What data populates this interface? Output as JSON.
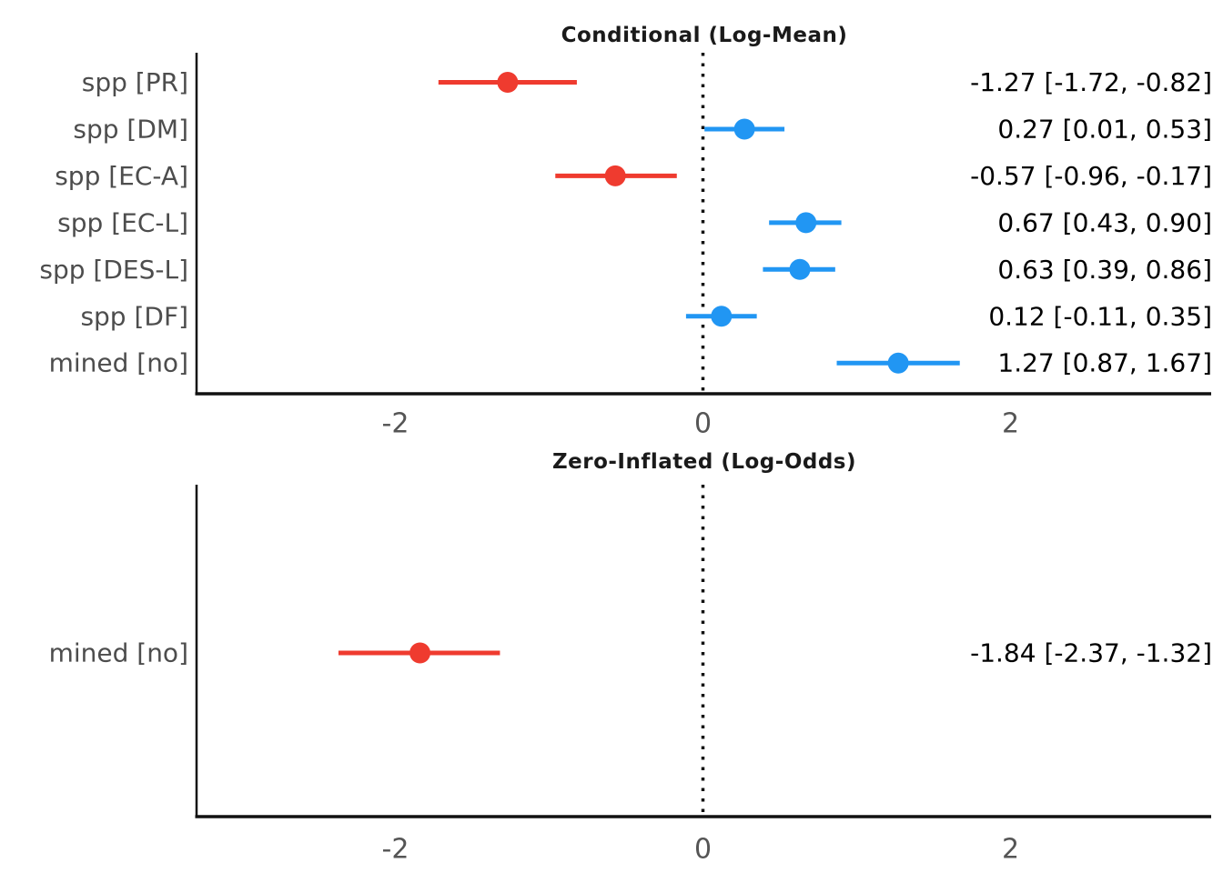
{
  "page": {
    "background": "#ffffff"
  },
  "colors": {
    "positive": "#2196F3",
    "negative": "#EF3B2F",
    "row_label": "#4D4D4D",
    "tick_label": "#555555",
    "value_label": "#000000",
    "axis": "#111111",
    "zero_line": "#111111",
    "title": "#1A1A1A"
  },
  "chart_data": [
    {
      "type": "forest",
      "title": "Conditional (Log-Mean)",
      "x_ticks": [
        "-2",
        "0",
        "2"
      ],
      "x_tick_values": [
        -2,
        0,
        2
      ],
      "xlim": [
        -3.3,
        3.35
      ],
      "zero_line": 0,
      "grid": false,
      "legend": "none",
      "rows": [
        {
          "label": "spp [PR]",
          "estimate": -1.27,
          "ci_low": -1.72,
          "ci_high": -0.82,
          "value_text": "-1.27 [-1.72, -0.82]",
          "direction": "negative"
        },
        {
          "label": "spp [DM]",
          "estimate": 0.27,
          "ci_low": 0.01,
          "ci_high": 0.53,
          "value_text": "0.27 [0.01, 0.53]",
          "direction": "positive"
        },
        {
          "label": "spp [EC-A]",
          "estimate": -0.57,
          "ci_low": -0.96,
          "ci_high": -0.17,
          "value_text": "-0.57 [-0.96, -0.17]",
          "direction": "negative"
        },
        {
          "label": "spp [EC-L]",
          "estimate": 0.67,
          "ci_low": 0.43,
          "ci_high": 0.9,
          "value_text": "0.67 [0.43, 0.90]",
          "direction": "positive"
        },
        {
          "label": "spp [DES-L]",
          "estimate": 0.63,
          "ci_low": 0.39,
          "ci_high": 0.86,
          "value_text": "0.63 [0.39, 0.86]",
          "direction": "positive"
        },
        {
          "label": "spp [DF]",
          "estimate": 0.12,
          "ci_low": -0.11,
          "ci_high": 0.35,
          "value_text": "0.12 [-0.11, 0.35]",
          "direction": "positive"
        },
        {
          "label": "mined [no]",
          "estimate": 1.27,
          "ci_low": 0.87,
          "ci_high": 1.67,
          "value_text": "1.27 [0.87, 1.67]",
          "direction": "positive"
        }
      ]
    },
    {
      "type": "forest",
      "title": "Zero-Inflated (Log-Odds)",
      "x_ticks": [
        "-2",
        "0",
        "2"
      ],
      "x_tick_values": [
        -2,
        0,
        2
      ],
      "xlim": [
        -3.3,
        3.35
      ],
      "zero_line": 0,
      "grid": false,
      "legend": "none",
      "rows": [
        {
          "label": "mined [no]",
          "estimate": -1.84,
          "ci_low": -2.37,
          "ci_high": -1.32,
          "value_text": "-1.84 [-2.37, -1.32]",
          "direction": "negative"
        }
      ]
    }
  ]
}
